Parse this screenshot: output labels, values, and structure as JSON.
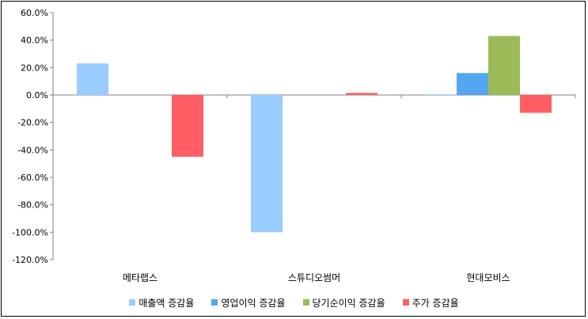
{
  "chart_data": {
    "type": "bar",
    "categories": [
      "메타랩스",
      "스튜디오썸머",
      "현대모비스"
    ],
    "series": [
      {
        "name": "매출액 증감율",
        "color": "#99ccff",
        "values": [
          23.0,
          -100.0,
          0.5
        ]
      },
      {
        "name": "영업이익 증감율",
        "color": "#55a6f0",
        "values": [
          0.0,
          0.0,
          16.0
        ]
      },
      {
        "name": "당기순이익 증감율",
        "color": "#9bbb59",
        "values": [
          0.0,
          0.0,
          43.0
        ]
      },
      {
        "name": "주가 증감율",
        "color": "#ff5f64",
        "values": [
          -45.0,
          1.5,
          -13.0
        ]
      }
    ],
    "yticks": [
      "60.0%",
      "40.0%",
      "20.0%",
      "0.0%",
      "-20.0%",
      "-40.0%",
      "-60.0%",
      "-80.0%",
      "-100.0%",
      "-120.0%"
    ],
    "ylim": [
      -120,
      60
    ],
    "grid": false,
    "legend_position": "bottom"
  }
}
